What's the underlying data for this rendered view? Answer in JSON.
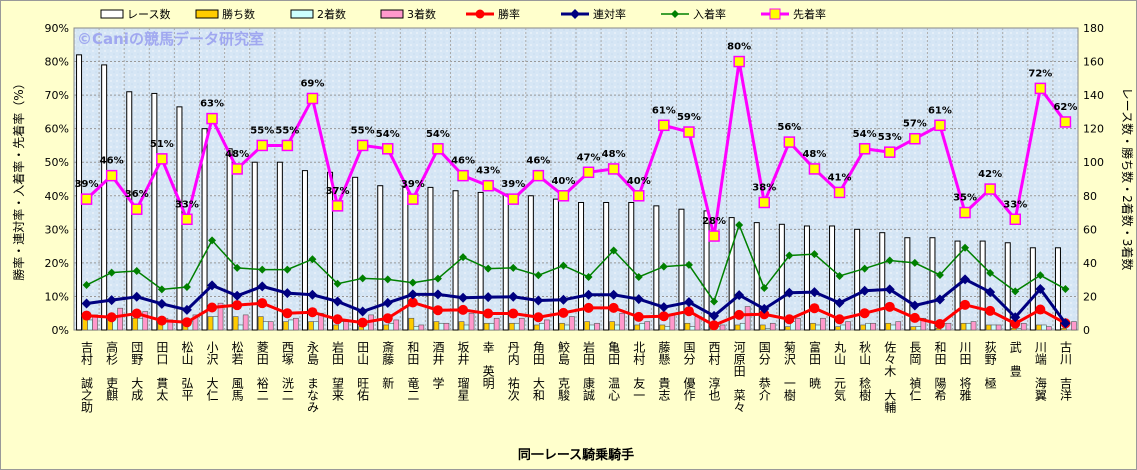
{
  "chart_data": {
    "type": "bar+line",
    "watermark": "©Caniの競馬データ研究室",
    "xlabel": "同一レース騎乗騎手",
    "ylabel_left": "勝率・連対率・入着率・先着率（%）",
    "ylabel_right": "レース数・勝ち数・2着数・3着数",
    "ylim_left": [
      0,
      90
    ],
    "ylim_right": [
      0,
      180
    ],
    "yticks_left": [
      "0%",
      "10%",
      "20%",
      "30%",
      "40%",
      "50%",
      "60%",
      "70%",
      "80%",
      "90%"
    ],
    "yticks_right": [
      "0",
      "20",
      "40",
      "60",
      "80",
      "100",
      "120",
      "140",
      "160",
      "180"
    ],
    "grid": true,
    "legend_position": "top",
    "categories": [
      "吉村　誠之助",
      "高杉　吏麒",
      "団野　大成",
      "田口　貫太",
      "松山　弘平",
      "小沢　大仁",
      "松若　風馬",
      "菱田　裕二",
      "西塚　洸二",
      "永島　まなみ",
      "岩田　望来",
      "田山　旺佑",
      "斎藤　新",
      "和田　竜二",
      "酒井　学",
      "坂井　瑠星",
      "幸　英明",
      "丹内　祐次",
      "角田　大和",
      "鮫島　克駿",
      "岩田　康誠",
      "亀田　温心",
      "北村　友一",
      "藤懸　貴志",
      "国分　優作",
      "西村　淳也",
      "河原田　菜々",
      "国分　恭介",
      "菊沢　一樹",
      "富田　暁",
      "丸山　元気",
      "秋山　稔樹",
      "佐々木　大輔",
      "長岡　禎仁",
      "和田　陽希",
      "川田　将雅",
      "荻野　極",
      "武　豊",
      "川端　海翼",
      "古川　吉洋"
    ],
    "bar_series": [
      {
        "name": "レース数",
        "color": "#ffffff",
        "values": [
          164,
          158,
          142,
          141,
          133,
          120,
          108,
          100,
          100,
          95,
          94,
          91,
          86,
          85,
          85,
          83,
          82,
          81,
          80,
          78,
          76,
          76,
          76,
          74,
          72,
          71,
          67,
          64,
          63,
          62,
          62,
          60,
          58,
          55,
          55,
          53,
          53,
          52,
          49,
          49
        ]
      },
      {
        "name": "勝ち数",
        "color": "#ffcc00",
        "values": [
          7,
          6,
          7,
          4,
          3,
          8,
          8,
          8,
          5,
          5,
          3,
          2,
          3,
          7,
          5,
          5,
          4,
          4,
          3,
          4,
          5,
          5,
          3,
          3,
          4,
          1,
          3,
          3,
          2,
          4,
          2,
          3,
          4,
          2,
          1,
          4,
          3,
          1,
          3,
          1
        ]
      },
      {
        "name": "2着数",
        "color": "#ccffff",
        "values": [
          6,
          8,
          7,
          7,
          5,
          8,
          3,
          5,
          6,
          5,
          5,
          3,
          4,
          2,
          4,
          3,
          4,
          4,
          4,
          3,
          3,
          3,
          4,
          2,
          2,
          2,
          4,
          1,
          5,
          3,
          3,
          4,
          3,
          2,
          4,
          4,
          3,
          1,
          3,
          0
        ]
      },
      {
        "name": "3着数",
        "color": "#ff99cc",
        "values": [
          9,
          13,
          11,
          6,
          9,
          16,
          9,
          5,
          7,
          10,
          5,
          9,
          6,
          3,
          4,
          10,
          7,
          7,
          6,
          8,
          4,
          10,
          5,
          9,
          8,
          3,
          14,
          4,
          7,
          7,
          5,
          4,
          5,
          7,
          4,
          5,
          3,
          4,
          2,
          5
        ]
      }
    ],
    "line_series": [
      {
        "name": "勝率",
        "color": "#ff0000",
        "values": [
          4.3,
          3.8,
          4.9,
          2.8,
          2.3,
          6.7,
          7.4,
          8.0,
          5.0,
          5.3,
          3.2,
          2.2,
          3.5,
          8.2,
          5.9,
          6.0,
          4.9,
          4.9,
          3.8,
          5.1,
          6.6,
          6.6,
          3.9,
          4.1,
          5.6,
          1.4,
          4.5,
          4.7,
          3.2,
          6.5,
          3.2,
          5.0,
          6.9,
          3.6,
          1.8,
          7.5,
          5.7,
          1.9,
          6.1,
          2.0
        ]
      },
      {
        "name": "連対率",
        "color": "#000080",
        "values": [
          7.9,
          8.9,
          9.9,
          7.8,
          6.0,
          13.3,
          10.2,
          13.0,
          11.0,
          10.5,
          8.5,
          5.5,
          8.1,
          10.6,
          10.6,
          9.6,
          9.8,
          9.9,
          8.8,
          9.0,
          10.5,
          10.5,
          9.2,
          6.8,
          8.3,
          4.2,
          10.4,
          6.3,
          11.1,
          11.3,
          8.1,
          11.7,
          12.1,
          7.3,
          9.1,
          15.1,
          11.3,
          3.8,
          12.2,
          2.0
        ]
      },
      {
        "name": "入着率",
        "color": "#008000",
        "values": [
          13.4,
          17.1,
          17.6,
          12.1,
          12.8,
          26.7,
          18.5,
          18.0,
          18.0,
          21.1,
          13.8,
          15.4,
          15.1,
          14.1,
          15.3,
          21.7,
          18.3,
          18.5,
          16.3,
          19.2,
          15.8,
          23.7,
          15.8,
          18.9,
          19.4,
          8.5,
          31.3,
          12.5,
          22.2,
          22.6,
          16.1,
          18.3,
          20.7,
          20.0,
          16.4,
          24.5,
          17.0,
          11.5,
          16.3,
          12.2
        ]
      },
      {
        "name": "先着率",
        "color": "#ff00ff",
        "values": [
          39,
          46,
          36,
          51,
          33,
          63,
          48,
          55,
          55,
          69,
          37,
          55,
          54,
          39,
          54,
          46,
          43,
          39,
          46,
          40,
          47,
          48,
          40,
          61,
          59,
          28,
          80,
          38,
          56,
          48,
          41,
          54,
          53,
          57,
          61,
          35,
          42,
          33,
          72,
          62
        ],
        "labels": [
          "39%",
          "46%",
          "36%",
          "51%",
          "33%",
          "63%",
          "48%",
          "55%",
          "55%",
          "69%",
          "37%",
          "55%",
          "54%",
          "39%",
          "54%",
          "46%",
          "43%",
          "39%",
          "46%",
          "40%",
          "47%",
          "48%",
          "40%",
          "61%",
          "59%",
          "28%",
          "80%",
          "38%",
          "56%",
          "48%",
          "41%",
          "54%",
          "53%",
          "57%",
          "61%",
          "35%",
          "42%",
          "33%",
          "72%",
          "62%"
        ]
      }
    ]
  }
}
